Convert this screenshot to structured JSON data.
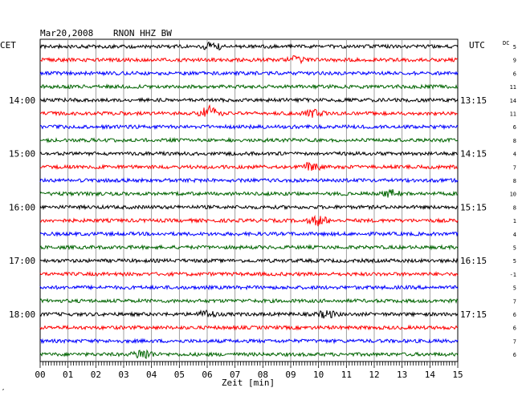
{
  "header": {
    "date": "Mar20,2008",
    "station": "RNON HHZ BW",
    "left_zone": "CET",
    "right_zone": "UTC",
    "dc_label": "DC"
  },
  "chart_data": {
    "type": "line",
    "title": "Mar20,2008  RNON HHZ BW",
    "xlabel": "Zeit [min]",
    "xlim": [
      0,
      15
    ],
    "x_ticks": [
      "00",
      "01",
      "02",
      "03",
      "04",
      "05",
      "06",
      "07",
      "08",
      "09",
      "10",
      "11",
      "12",
      "13",
      "14",
      "15"
    ],
    "minutes_per_trace": 15,
    "trace_count": 24,
    "trace_colors": [
      "#000000",
      "#ff0000",
      "#0000ff",
      "#006400"
    ],
    "left_time_labels": [
      {
        "trace": 4,
        "label": "14:00"
      },
      {
        "trace": 8,
        "label": "15:00"
      },
      {
        "trace": 12,
        "label": "16:00"
      },
      {
        "trace": 16,
        "label": "17:00"
      },
      {
        "trace": 20,
        "label": "18:00"
      }
    ],
    "right_time_labels": [
      {
        "trace": 4,
        "label": "13:15"
      },
      {
        "trace": 8,
        "label": "14:15"
      },
      {
        "trace": 12,
        "label": "15:15"
      },
      {
        "trace": 16,
        "label": "16:15"
      },
      {
        "trace": 20,
        "label": "17:15"
      }
    ],
    "dc_offsets": [
      "5",
      "9",
      "6",
      "11",
      "14",
      "11",
      "6",
      "8",
      "4",
      "7",
      "8",
      "10",
      "8",
      "1",
      "4",
      "5",
      "5",
      "-1",
      "5",
      "7",
      "6",
      "6",
      "7",
      "6"
    ],
    "events": [
      {
        "trace": 0,
        "minute": 6.2,
        "strength": 1.2
      },
      {
        "trace": 1,
        "minute": 9.2,
        "strength": 1.0
      },
      {
        "trace": 5,
        "minute": 6.1,
        "strength": 2.2
      },
      {
        "trace": 5,
        "minute": 9.8,
        "strength": 1.2
      },
      {
        "trace": 9,
        "minute": 9.7,
        "strength": 1.3
      },
      {
        "trace": 11,
        "minute": 12.6,
        "strength": 1.0
      },
      {
        "trace": 13,
        "minute": 10.0,
        "strength": 1.4
      },
      {
        "trace": 20,
        "minute": 6.0,
        "strength": 1.0
      },
      {
        "trace": 20,
        "minute": 10.3,
        "strength": 1.0
      },
      {
        "trace": 23,
        "minute": 3.7,
        "strength": 1.6
      }
    ]
  }
}
